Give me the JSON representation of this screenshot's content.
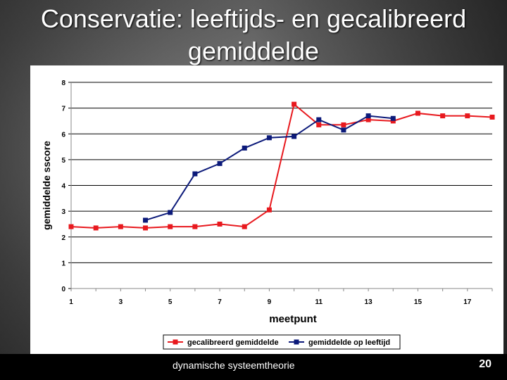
{
  "slide": {
    "title_line1": "Conservatie: leeftijds- en gecalibreerd",
    "title_line2": "gemiddelde",
    "footer_text": "dynamische systeemtheorie",
    "page_number": "20"
  },
  "chart_data": {
    "type": "line",
    "title": "",
    "xlabel": "meetpunt",
    "ylabel": "gemiddelde sscore",
    "xlim": [
      1,
      18
    ],
    "ylim": [
      0,
      8
    ],
    "x_ticks": [
      1,
      3,
      5,
      7,
      9,
      11,
      13,
      15,
      17
    ],
    "y_ticks": [
      0,
      1,
      2,
      3,
      4,
      5,
      6,
      7,
      8
    ],
    "grid": "horizontal",
    "legend": "bottom",
    "series": [
      {
        "name": "gecalibreerd gemiddelde",
        "color": "#e8191e",
        "x": [
          1,
          2,
          3,
          4,
          5,
          6,
          7,
          8,
          9,
          10,
          11,
          12,
          13,
          14,
          15,
          16,
          17,
          18
        ],
        "y": [
          2.4,
          2.35,
          2.4,
          2.35,
          2.4,
          2.4,
          2.5,
          2.4,
          3.05,
          7.15,
          6.35,
          6.35,
          6.55,
          6.5,
          6.8,
          6.7,
          6.7,
          6.65
        ]
      },
      {
        "name": "gemiddelde op leeftijd",
        "color": "#0c1a7a",
        "x": [
          4,
          5,
          6,
          7,
          8,
          9,
          10,
          11,
          12,
          13,
          14
        ],
        "y": [
          2.65,
          2.95,
          4.45,
          4.85,
          5.45,
          5.85,
          5.9,
          6.55,
          6.15,
          6.7,
          6.6
        ]
      }
    ]
  }
}
